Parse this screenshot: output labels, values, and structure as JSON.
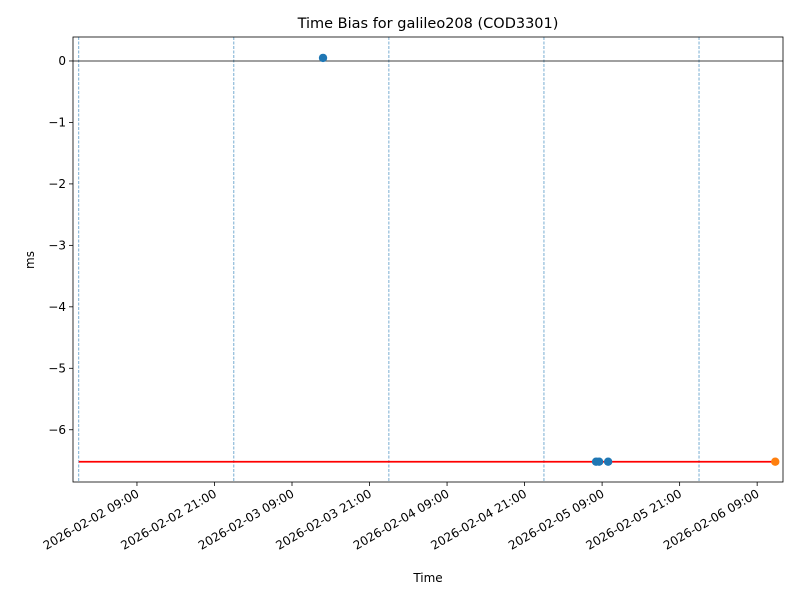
{
  "chart_data": {
    "type": "scatter",
    "title": "Time Bias for galileo208 (COD3301)",
    "xlabel": "Time",
    "ylabel": "ms",
    "xlim": [
      "2026-02-01 23:06",
      "2026-02-06 13:00"
    ],
    "xticks": [
      "2026-02-02 09:00",
      "2026-02-02 21:00",
      "2026-02-03 09:00",
      "2026-02-03 21:00",
      "2026-02-04 09:00",
      "2026-02-04 21:00",
      "2026-02-05 09:00",
      "2026-02-05 21:00",
      "2026-02-06 09:00"
    ],
    "ylim": [
      -6.85,
      0.39
    ],
    "yticks": [
      {
        "value": -6,
        "label": "−6"
      },
      {
        "value": -5,
        "label": "−5"
      },
      {
        "value": -4,
        "label": "−4"
      },
      {
        "value": -3,
        "label": "−3"
      },
      {
        "value": -2,
        "label": "−2"
      },
      {
        "value": -1,
        "label": "−1"
      },
      0
    ],
    "series": [
      {
        "color": "#1f77b4",
        "x": [
          "2026-02-03 13:48",
          "2026-02-05 08:04",
          "2026-02-05 08:32",
          "2026-02-05 09:56"
        ],
        "values": [
          0.05,
          -6.52,
          -6.52,
          -6.52
        ]
      },
      {
        "color": "#ff7f0e",
        "x": [
          "2026-02-06 11:48"
        ],
        "values": [
          -6.52
        ]
      }
    ],
    "lines": [
      {
        "color": "red",
        "x": [
          "2026-02-02 00:00",
          "2026-02-06 11:48"
        ],
        "values": [
          -6.52,
          -6.52
        ]
      }
    ],
    "axhline": {
      "value": 0,
      "color": "black"
    },
    "vlines": {
      "color": "#1f77b4",
      "x": [
        "2026-02-02 00:00",
        "2026-02-03 00:00",
        "2026-02-04 00:00",
        "2026-02-05 00:00",
        "2026-02-06 00:00"
      ]
    }
  }
}
